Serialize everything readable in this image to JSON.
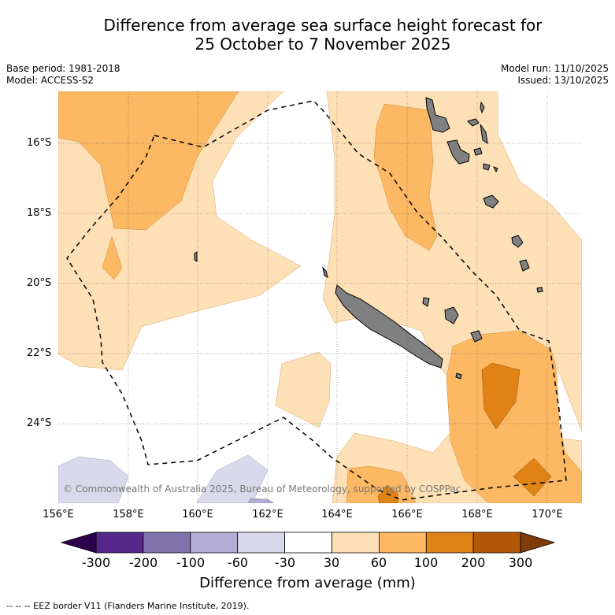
{
  "title_line1": "Difference from average sea surface height forecast for",
  "title_line2": "25 October to 7 November 2025",
  "base_period": "Base period: 1981-2018",
  "model": "Model: ACCESS-S2",
  "model_run": "Model run: 11/10/2025",
  "issued": "Issued: 13/10/2025",
  "copyright": "© Commonwealth of Australia 2025, Bureau of Meteorology, supported by COSPPac",
  "footnote": "-- -- -- EEZ border V11 (Flanders Marine Institute, 2019).",
  "map": {
    "lon_range": [
      156.0,
      171.0
    ],
    "lat_range": [
      -26.5,
      -14.8
    ],
    "lat_ticks": [
      {
        "value": -16,
        "label": "16°S"
      },
      {
        "value": -18,
        "label": "18°S"
      },
      {
        "value": -20,
        "label": "20°S"
      },
      {
        "value": -22,
        "label": "22°S"
      },
      {
        "value": -24,
        "label": "24°S"
      }
    ],
    "lon_ticks": [
      {
        "value": 156,
        "label": "156°E"
      },
      {
        "value": 158,
        "label": "158°E"
      },
      {
        "value": 160,
        "label": "160°E"
      },
      {
        "value": 162,
        "label": "162°E"
      },
      {
        "value": 164,
        "label": "164°E"
      },
      {
        "value": 166,
        "label": "166°E"
      },
      {
        "value": 168,
        "label": "168°E"
      },
      {
        "value": 170,
        "label": "170°E"
      }
    ]
  },
  "colorbar": {
    "title": "Difference from average (mm)",
    "labels": [
      "-300",
      "-200",
      "-100",
      "-60",
      "-30",
      "30",
      "60",
      "100",
      "200",
      "300"
    ],
    "bins": [
      {
        "range": "-300 to -200",
        "color": "#542788"
      },
      {
        "range": "-200 to -100",
        "color": "#8073ac"
      },
      {
        "range": "-100 to -60",
        "color": "#b2abd2"
      },
      {
        "range": "-60 to -30",
        "color": "#d8daeb"
      },
      {
        "range": "-30 to 30",
        "color": "#ffffff"
      },
      {
        "range": "30 to 60",
        "color": "#fee0b6"
      },
      {
        "range": "60 to 100",
        "color": "#fdb863"
      },
      {
        "range": "100 to 200",
        "color": "#e08214"
      },
      {
        "range": "200 to 300",
        "color": "#b35806"
      }
    ],
    "under_color": "#2d004b",
    "over_color": "#7f3b08"
  },
  "colors": {
    "land": "#808080",
    "eez_border": "#000000",
    "gridline": "#555555"
  }
}
